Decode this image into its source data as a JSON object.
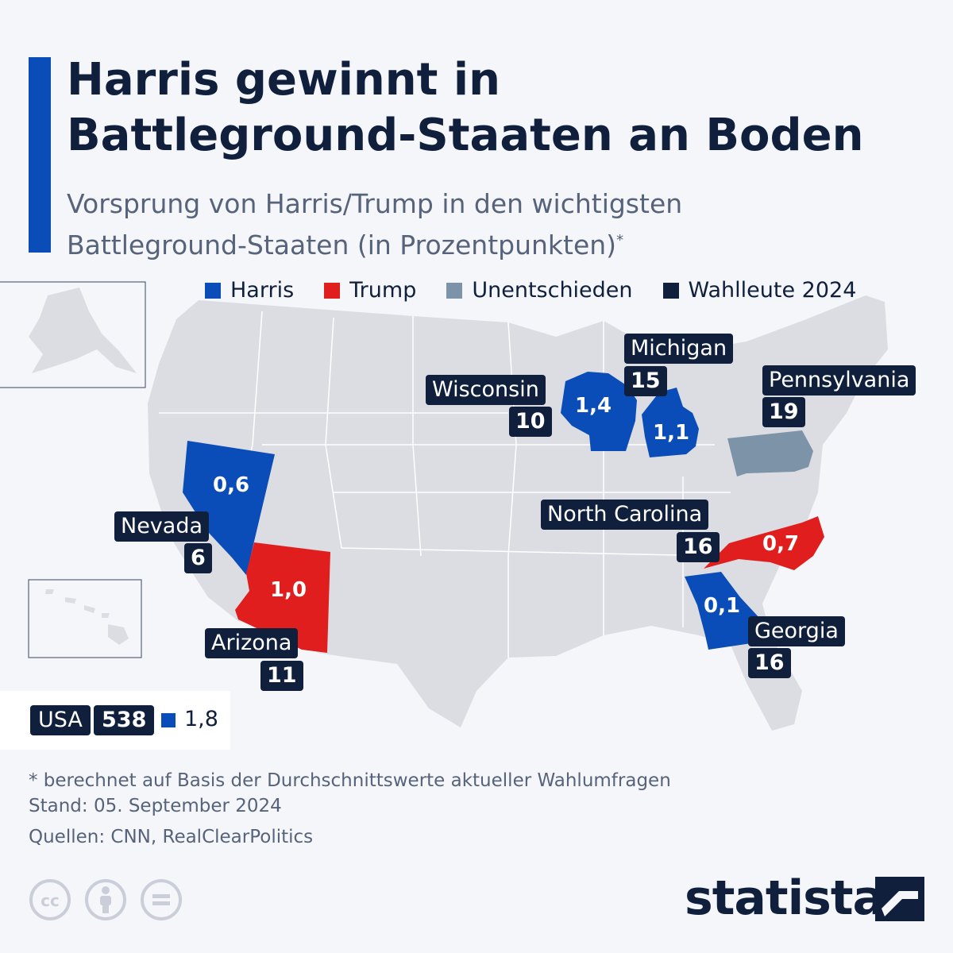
{
  "title_line1": "Harris gewinnt in",
  "title_line2": "Battleground-Staaten an Boden",
  "subtitle_line1": "Vorsprung von Harris/Trump in den wichtigsten",
  "subtitle_line2": "Battleground-Staaten (in Prozentpunkten)",
  "subtitle_note": "*",
  "legend": [
    {
      "label": "Harris",
      "color": "#0a4db8"
    },
    {
      "label": "Trump",
      "color": "#e01e1e"
    },
    {
      "label": "Unentschieden",
      "color": "#7d93a8"
    },
    {
      "label": "Wahlleute 2024",
      "color": "#0f1f3c"
    }
  ],
  "states": {
    "nevada": {
      "name": "Nevada",
      "electors": "6",
      "lead": "0,6",
      "leader": "Harris",
      "color": "#0a4db8"
    },
    "arizona": {
      "name": "Arizona",
      "electors": "11",
      "lead": "1,0",
      "leader": "Trump",
      "color": "#e01e1e"
    },
    "wisconsin": {
      "name": "Wisconsin",
      "electors": "10",
      "lead": "1,4",
      "leader": "Harris",
      "color": "#0a4db8"
    },
    "michigan": {
      "name": "Michigan",
      "electors": "15",
      "lead": "1,1",
      "leader": "Harris",
      "color": "#0a4db8"
    },
    "pennsylvania": {
      "name": "Pennsylvania",
      "electors": "19",
      "lead": "",
      "leader": "Unentschieden",
      "color": "#7d93a8"
    },
    "northcarolina": {
      "name": "North Carolina",
      "electors": "16",
      "lead": "0,7",
      "leader": "Trump",
      "color": "#e01e1e"
    },
    "georgia": {
      "name": "Georgia",
      "electors": "16",
      "lead": "0,1",
      "leader": "Harris",
      "color": "#0a4db8"
    }
  },
  "national": {
    "label": "USA",
    "electors": "538",
    "lead": "1,8",
    "leader": "Harris",
    "color": "#0a4db8"
  },
  "footnote": "* berechnet auf Basis der Durchschnittswerte aktueller Wahlumfragen",
  "date": "Stand: 05. September 2024",
  "sources": "Quellen: CNN, RealClearPolitics",
  "brand": "statista",
  "license_icons": [
    "cc-icon",
    "attribution-icon",
    "no-derivatives-icon"
  ]
}
